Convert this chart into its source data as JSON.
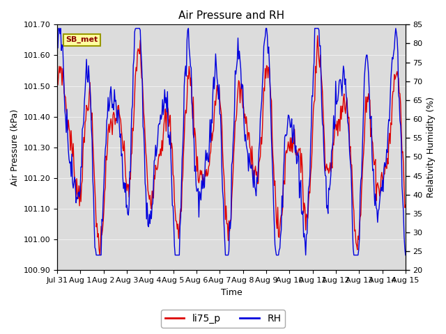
{
  "title": "Air Pressure and RH",
  "xlabel": "Time",
  "ylabel_left": "Air Pressure (kPa)",
  "ylabel_right": "Relativity Humidity (%)",
  "annotation": "SB_met",
  "ylim_left": [
    100.9,
    101.7
  ],
  "ylim_right": [
    20,
    85
  ],
  "yticks_left": [
    100.9,
    101.0,
    101.1,
    101.2,
    101.3,
    101.4,
    101.5,
    101.6,
    101.7
  ],
  "yticks_right": [
    20,
    25,
    30,
    35,
    40,
    45,
    50,
    55,
    60,
    65,
    70,
    75,
    80,
    85
  ],
  "xtick_labels": [
    "Jul 31",
    "Aug 1",
    "Aug 2",
    "Aug 3",
    "Aug 4",
    "Aug 5",
    "Aug 6",
    "Aug 7",
    "Aug 8",
    "Aug 9",
    "Aug 10",
    "Aug 11",
    "Aug 12",
    "Aug 13",
    "Aug 14",
    "Aug 15"
  ],
  "legend_labels": [
    "li75_p",
    "RH"
  ],
  "line_colors": [
    "#dd0000",
    "#0000dd"
  ],
  "background_color": "#dcdcdc",
  "outer_background": "#ffffff",
  "title_fontsize": 11,
  "axis_fontsize": 9,
  "tick_fontsize": 8,
  "legend_fontsize": 10
}
